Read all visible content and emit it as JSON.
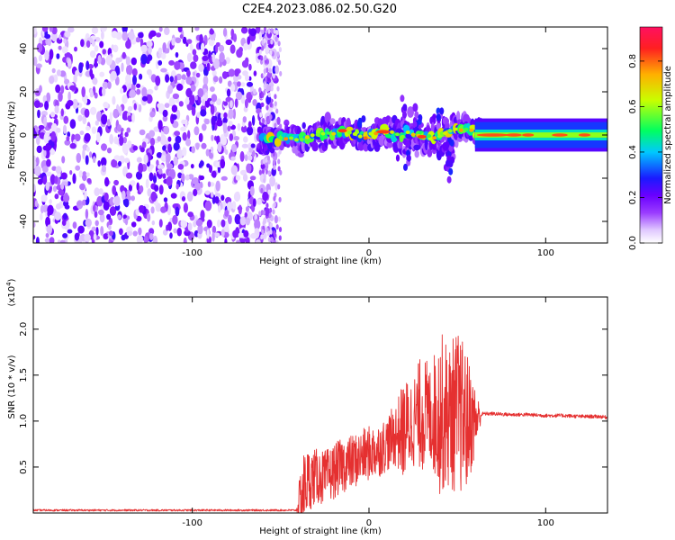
{
  "title": "C2E4.2023.086.02.50.G20",
  "chart_data": [
    {
      "type": "heatmap",
      "xlabel": "Height of straight line (km)",
      "ylabel": "Frequency (Hz)",
      "xlim": [
        -190,
        135
      ],
      "ylim": [
        -50,
        50
      ],
      "x_ticks": [
        -100,
        0,
        100
      ],
      "y_ticks": [
        -40,
        -20,
        0,
        20,
        40
      ],
      "colorbar": {
        "label": "Normalized spectral amplitude",
        "range": [
          0,
          0.95
        ],
        "ticks": [
          "0.0",
          "0.2",
          "0.4",
          "0.6",
          "0.8"
        ],
        "colors": [
          "#ffffff",
          "#e0c8ff",
          "#9a3cff",
          "#6a00ff",
          "#1a1aff",
          "#00c8ff",
          "#00ff60",
          "#c8ff00",
          "#ffb000",
          "#ff2020",
          "#ff1060"
        ]
      },
      "regions": [
        {
          "x_from": -190,
          "x_to": -52,
          "description": "broadband noise, amplitude 0.0-0.3, spans full frequency range"
        },
        {
          "x_from": -62,
          "x_to": 65,
          "description": "signal band near 0 Hz, amplitude up to 0.9, width about +/-10 Hz, bursts to +20/-25 Hz near 20-50 km"
        },
        {
          "x_from": 60,
          "x_to": 135,
          "description": "steady narrow band centered at 0 Hz, amplitude ~0.9 with red cores near 60-80 km and 105-112 km"
        }
      ]
    },
    {
      "type": "line",
      "xlabel": "Height of straight line (km)",
      "ylabel": "SNR (10 * v/v)",
      "y_multiplier": "(x10",
      "y_multiplier_exp": "4",
      "xlim": [
        -190,
        135
      ],
      "ylim": [
        0,
        2.35
      ],
      "x_ticks": [
        -100,
        0,
        100
      ],
      "y_ticks": [
        "0.5",
        "1.0",
        "1.5",
        "2.0"
      ],
      "series": [
        {
          "color": "#e53030",
          "x": [
            -190,
            -150,
            -100,
            -60,
            -41,
            -38,
            -35,
            -30,
            -25,
            -20,
            -15,
            -10,
            -5,
            0,
            5,
            10,
            15,
            20,
            25,
            30,
            35,
            40,
            45,
            50,
            55,
            60,
            64,
            70,
            80,
            90,
            100,
            110,
            120,
            130,
            135
          ],
          "mean": [
            0.03,
            0.03,
            0.03,
            0.03,
            0.03,
            0.2,
            0.35,
            0.4,
            0.38,
            0.45,
            0.52,
            0.55,
            0.6,
            0.65,
            0.68,
            0.75,
            0.85,
            0.9,
            1.0,
            1.1,
            1.05,
            1.1,
            1.05,
            1.1,
            1.0,
            1.0,
            1.08,
            1.08,
            1.07,
            1.07,
            1.06,
            1.06,
            1.05,
            1.05,
            1.04
          ],
          "spread": [
            0.01,
            0.01,
            0.01,
            0.01,
            0.01,
            0.45,
            0.35,
            0.3,
            0.3,
            0.3,
            0.3,
            0.3,
            0.3,
            0.3,
            0.3,
            0.3,
            0.35,
            0.55,
            0.5,
            0.65,
            0.55,
            0.9,
            0.8,
            0.9,
            0.8,
            0.4,
            0.02,
            0.02,
            0.02,
            0.02,
            0.02,
            0.02,
            0.02,
            0.02,
            0.02
          ]
        }
      ]
    }
  ]
}
